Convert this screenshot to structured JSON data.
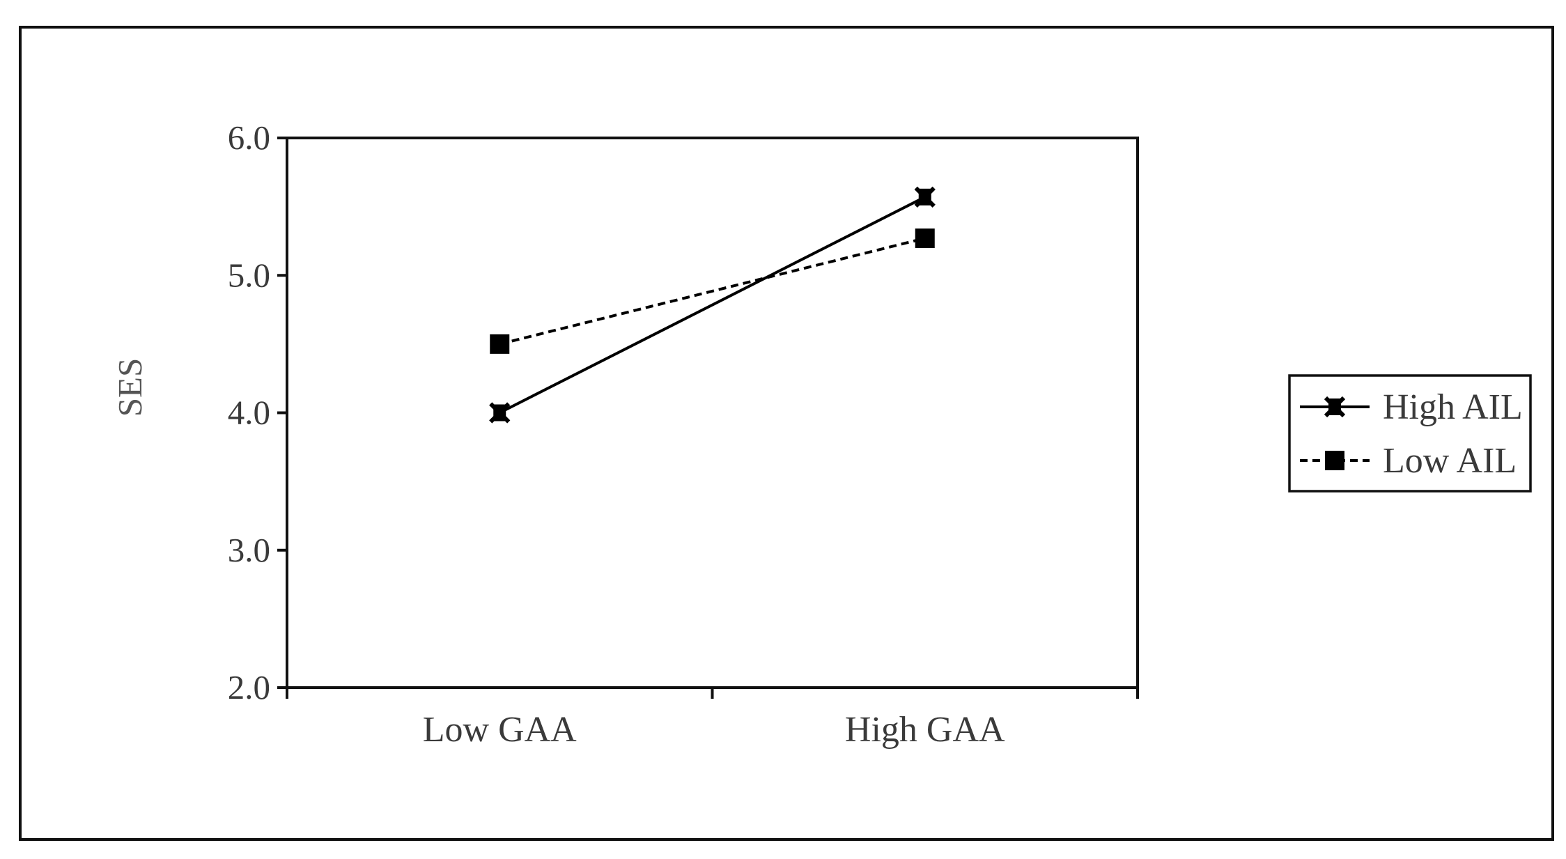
{
  "chart_data": {
    "type": "line",
    "title": "",
    "xlabel": "",
    "ylabel": "SES",
    "categories": [
      "Low GAA",
      "High GAA"
    ],
    "ylim": [
      2.0,
      6.0
    ],
    "yticks": [
      "2.0",
      "3.0",
      "4.0",
      "5.0",
      "6.0"
    ],
    "grid": false,
    "legend_position": "right",
    "series": [
      {
        "name": "High AIL",
        "values": [
          4.0,
          5.57
        ],
        "line_style": "solid",
        "marker": "asterisk-square",
        "color": "#000000"
      },
      {
        "name": "Low AIL",
        "values": [
          4.5,
          5.27
        ],
        "line_style": "dashed",
        "marker": "square",
        "color": "#000000"
      }
    ]
  }
}
